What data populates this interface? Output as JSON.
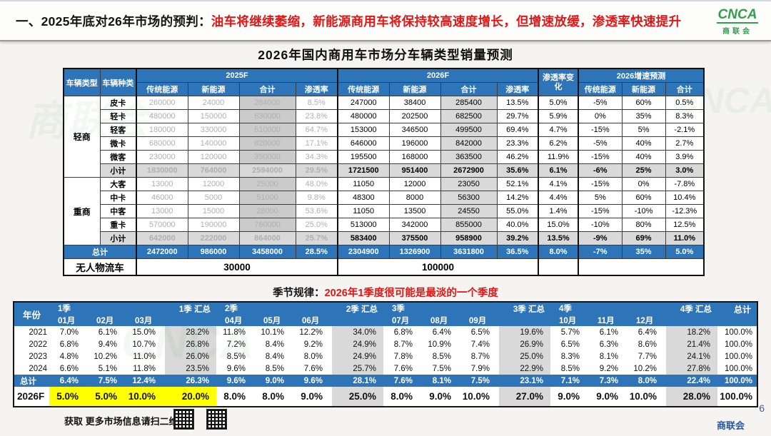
{
  "colors": {
    "header_blue": "#2d74b8",
    "alert_red": "#e01717",
    "logo_green": "#2fa04b",
    "highlight_yellow": "#ffff00",
    "subtotal_gray": "#d9d9d9"
  },
  "header": {
    "title_black": "一、2025年底对26年市场的预判：",
    "title_red": "油车将继续萎缩，新能源商用车将保持较高速度增长，但增速放缓，渗透率快速提升"
  },
  "logo": {
    "cnca": "CNCA",
    "sub": "商联会"
  },
  "forecast_table": {
    "title": "2026年国内商用车市场分车辆类型销量预测",
    "col_headers": {
      "vehicle_type": "车辆类型",
      "vehicle_kind": "车辆种类",
      "group_2025": "2025F",
      "group_2026": "2026F",
      "penetration_change": "渗透率变化",
      "growth_group": "2026增速预测",
      "sub_traditional": "传统能源",
      "sub_new_energy": "新能源",
      "sub_total": "合计",
      "sub_penetration": "渗透率"
    },
    "groups": [
      {
        "name": "轻商",
        "rows": [
          {
            "kind": "皮卡",
            "cells": [
              "260000",
              "24000",
              "284000",
              "8.5%",
              "247000",
              "38400",
              "285400",
              "13.5%",
              "5.0%",
              "-5%",
              "60%",
              "0.5%"
            ]
          },
          {
            "kind": "轻卡",
            "cells": [
              "480000",
              "150000",
              "630000",
              "23.8%",
              "480000",
              "202500",
              "682500",
              "29.7%",
              "5.9%",
              "0%",
              "35%",
              "8.3%"
            ]
          },
          {
            "kind": "轻客",
            "cells": [
              "180000",
              "330000",
              "510000",
              "64.7%",
              "153000",
              "346500",
              "499500",
              "69.4%",
              "4.7%",
              "-15%",
              "5%",
              "-2.1%"
            ]
          },
          {
            "kind": "微卡",
            "cells": [
              "680000",
              "140000",
              "820000",
              "17.1%",
              "646000",
              "196000",
              "842000",
              "23.3%",
              "6.2%",
              "-5%",
              "40%",
              "2.7%"
            ]
          },
          {
            "kind": "微客",
            "cells": [
              "230000",
              "120000",
              "350000",
              "34.3%",
              "195500",
              "168000",
              "363500",
              "46.2%",
              "11.9%",
              "-15%",
              "40%",
              "3.9%"
            ]
          },
          {
            "kind": "小计",
            "sub": true,
            "cells": [
              "1830000",
              "764000",
              "2594000",
              "29.5%",
              "1721500",
              "951400",
              "2672900",
              "35.6%",
              "6.1%",
              "-6%",
              "25%",
              "3.0%"
            ]
          }
        ]
      },
      {
        "name": "重商",
        "rows": [
          {
            "kind": "大客",
            "cells": [
              "13000",
              "12000",
              "25000",
              "48.0%",
              "11050",
              "12000",
              "23050",
              "52.1%",
              "4.1%",
              "-15%",
              "0%",
              "-7.8%"
            ]
          },
          {
            "kind": "中卡",
            "cells": [
              "46000",
              "5000",
              "51000",
              "9.8%",
              "48300",
              "8000",
              "56300",
              "14.2%",
              "4.4%",
              "5%",
              "60%",
              "10.4%"
            ]
          },
          {
            "kind": "中客",
            "cells": [
              "13000",
              "15000",
              "28000",
              "53.6%",
              "11050",
              "13500",
              "24550",
              "55.0%",
              "1.4%",
              "-15%",
              "-10%",
              "-12.3%"
            ]
          },
          {
            "kind": "重卡",
            "cells": [
              "570000",
              "190000",
              "760000",
              "25.0%",
              "513000",
              "342000",
              "855000",
              "40.0%",
              "15.0%",
              "-10%",
              "80%",
              "12.5%"
            ]
          },
          {
            "kind": "小计",
            "sub": true,
            "cells": [
              "642000",
              "222000",
              "864000",
              "25.7%",
              "583400",
              "375500",
              "958900",
              "39.2%",
              "13.5%",
              "-9%",
              "69%",
              "11.0%"
            ]
          }
        ]
      }
    ],
    "grand_total": {
      "label": "总计",
      "cells": [
        "2472000",
        "986000",
        "3458000",
        "28.5%",
        "2304900",
        "1326900",
        "3631800",
        "36.5%",
        "8.0%",
        "-7%",
        "35%",
        "5.0%"
      ]
    },
    "unmanned": {
      "label": "无人物流车",
      "value_2025": "30000",
      "value_2026": "100000"
    }
  },
  "seasonal_table": {
    "title_black": "季节规律：",
    "title_red": "2026年1季度很可能是最淡的一个季度",
    "headers": {
      "year": "年份",
      "total": "总计",
      "quarters": [
        {
          "label": "1季",
          "sum": "1季 汇总"
        },
        {
          "label": "2季",
          "sum": "2季 汇总"
        },
        {
          "label": "3季",
          "sum": "3季 汇总"
        },
        {
          "label": "4季",
          "sum": "4季 汇总"
        }
      ],
      "months": [
        "01月",
        "02月",
        "03月",
        "04月",
        "05月",
        "06月",
        "07月",
        "08月",
        "09月",
        "10月",
        "11月",
        "12月"
      ]
    },
    "rows": [
      {
        "label": "2021",
        "type": "year",
        "cells": [
          "7.0%",
          "6.1%",
          "15.0%",
          "28.2%",
          "11.8%",
          "10.1%",
          "12.2%",
          "34.0%",
          "6.8%",
          "6.4%",
          "6.5%",
          "19.6%",
          "5.7%",
          "6.1%",
          "6.4%",
          "18.2%",
          "100.0%"
        ]
      },
      {
        "label": "2022",
        "type": "year",
        "cells": [
          "6.8%",
          "9.4%",
          "10.7%",
          "26.8%",
          "7.2%",
          "8.4%",
          "9.2%",
          "24.9%",
          "8.7%",
          "10.9%",
          "7.4%",
          "26.9%",
          "6.5%",
          "6.3%",
          "8.6%",
          "21.4%",
          "100.0%"
        ]
      },
      {
        "label": "2023",
        "type": "year",
        "cells": [
          "4.8%",
          "10.2%",
          "11.0%",
          "26.0%",
          "8.5%",
          "8.4%",
          "8.0%",
          "24.9%",
          "7.8%",
          "8.5%",
          "8.7%",
          "25.0%",
          "8.3%",
          "8.1%",
          "7.7%",
          "24.1%",
          "100.0%"
        ]
      },
      {
        "label": "2024",
        "type": "year",
        "cells": [
          "6.6%",
          "5.1%",
          "11.8%",
          "23.5%",
          "9.6%",
          "8.5%",
          "7.6%",
          "25.7%",
          "7.6%",
          "7.5%",
          "7.9%",
          "22.9%",
          "8.5%",
          "9.2%",
          "10.2%",
          "27.8%",
          "100.0%"
        ]
      },
      {
        "label": "总计",
        "type": "total",
        "cells": [
          "6.4%",
          "7.5%",
          "12.4%",
          "26.3%",
          "9.6%",
          "9.0%",
          "9.6%",
          "28.1%",
          "7.6%",
          "8.1%",
          "7.5%",
          "23.1%",
          "7.1%",
          "7.3%",
          "8.0%",
          "22.4%",
          "100.0%"
        ]
      },
      {
        "label": "2026F",
        "type": "forecast",
        "highlight_count": 4,
        "cells": [
          "5.0%",
          "5.0%",
          "10.0%",
          "20.0%",
          "8.0%",
          "8.0%",
          "9.0%",
          "25.0%",
          "8.0%",
          "9.0%",
          "10.0%",
          "27.0%",
          "9.0%",
          "9.0%",
          "10.0%",
          "28.0%",
          "100.0%"
        ]
      }
    ]
  },
  "footer": {
    "hint": "获取 更多市场信息请扫二维码",
    "org": "商联会",
    "page": "6"
  }
}
